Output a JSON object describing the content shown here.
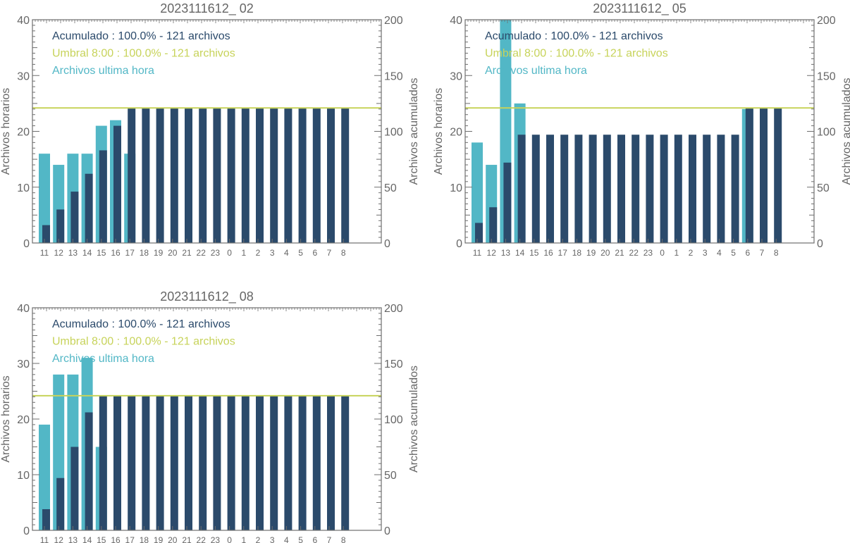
{
  "colors": {
    "accum": "#2b4a6b",
    "threshold": "#c7d35a",
    "hourly": "#52b7c6",
    "axis": "#6e6e6e"
  },
  "chart_data": [
    {
      "type": "bar",
      "title": "2023111612_ 02",
      "ylabel": "Archivos horarios",
      "y2label": "Archivos acumulados",
      "ylim": [
        0,
        40
      ],
      "y2lim": [
        0,
        200
      ],
      "yticks": [
        "0",
        "10",
        "20",
        "30",
        "40"
      ],
      "y2ticks": [
        "0",
        "50",
        "100",
        "150",
        "200"
      ],
      "categories": [
        "11",
        "12",
        "13",
        "14",
        "15",
        "16",
        "17",
        "18",
        "19",
        "20",
        "21",
        "22",
        "23",
        "0",
        "1",
        "2",
        "3",
        "4",
        "5",
        "6",
        "7",
        "8"
      ],
      "legend": [
        "Acumulado : 100.0% - 121 archivos",
        "Umbral 8:00 : 100.0% - 121 archivos",
        "Archivos ultima hora"
      ],
      "threshold": 121,
      "series": [
        {
          "name": "Archivos ultima hora",
          "axis": "left",
          "values": [
            16,
            14,
            16,
            16,
            21,
            22,
            16,
            null,
            null,
            null,
            null,
            null,
            null,
            null,
            null,
            null,
            null,
            null,
            null,
            null,
            null,
            null
          ]
        },
        {
          "name": "Acumulado",
          "axis": "right",
          "values": [
            16,
            30,
            46,
            62,
            83,
            105,
            121,
            121,
            121,
            121,
            121,
            121,
            121,
            121,
            121,
            121,
            121,
            121,
            121,
            121,
            121,
            121
          ]
        }
      ]
    },
    {
      "type": "bar",
      "title": "2023111612_ 05",
      "ylabel": "Archivos horarios",
      "y2label": "Archivos acumulados",
      "ylim": [
        0,
        40
      ],
      "y2lim": [
        0,
        200
      ],
      "yticks": [
        "0",
        "10",
        "20",
        "30",
        "40"
      ],
      "y2ticks": [
        "0",
        "50",
        "100",
        "150",
        "200"
      ],
      "categories": [
        "11",
        "12",
        "13",
        "14",
        "15",
        "16",
        "17",
        "18",
        "19",
        "20",
        "21",
        "22",
        "23",
        "0",
        "1",
        "2",
        "3",
        "4",
        "5",
        "6",
        "7",
        "8"
      ],
      "legend": [
        "Acumulado : 100.0% - 121 archivos",
        "Umbral 8:00 : 100.0% - 121 archivos",
        "Archivos ultima hora"
      ],
      "threshold": 121,
      "series": [
        {
          "name": "Archivos ultima hora",
          "axis": "left",
          "values": [
            18,
            14,
            40,
            25,
            null,
            null,
            null,
            null,
            null,
            null,
            null,
            null,
            null,
            null,
            null,
            null,
            null,
            null,
            null,
            24,
            null,
            null
          ]
        },
        {
          "name": "Acumulado",
          "axis": "right",
          "values": [
            18,
            32,
            72,
            97,
            97,
            97,
            97,
            97,
            97,
            97,
            97,
            97,
            97,
            97,
            97,
            97,
            97,
            97,
            97,
            121,
            121,
            121
          ]
        }
      ]
    },
    {
      "type": "bar",
      "title": "2023111612_ 08",
      "ylabel": "Archivos horarios",
      "y2label": "Archivos acumulados",
      "ylim": [
        0,
        40
      ],
      "y2lim": [
        0,
        200
      ],
      "yticks": [
        "0",
        "10",
        "20",
        "30",
        "40"
      ],
      "y2ticks": [
        "0",
        "50",
        "100",
        "150",
        "200"
      ],
      "categories": [
        "11",
        "12",
        "13",
        "14",
        "15",
        "16",
        "17",
        "18",
        "19",
        "20",
        "21",
        "22",
        "23",
        "0",
        "1",
        "2",
        "3",
        "4",
        "5",
        "6",
        "7",
        "8"
      ],
      "legend": [
        "Acumulado : 100.0% - 121 archivos",
        "Umbral 8:00 : 100.0% - 121 archivos",
        "Archivos ultima hora"
      ],
      "threshold": 121,
      "series": [
        {
          "name": "Archivos ultima hora",
          "axis": "left",
          "values": [
            19,
            28,
            28,
            31,
            15,
            null,
            null,
            null,
            null,
            null,
            null,
            null,
            null,
            null,
            null,
            null,
            null,
            null,
            null,
            null,
            null,
            null
          ]
        },
        {
          "name": "Acumulado",
          "axis": "right",
          "values": [
            19,
            47,
            75,
            106,
            121,
            121,
            121,
            121,
            121,
            121,
            121,
            121,
            121,
            121,
            121,
            121,
            121,
            121,
            121,
            121,
            121,
            121
          ]
        }
      ]
    }
  ]
}
